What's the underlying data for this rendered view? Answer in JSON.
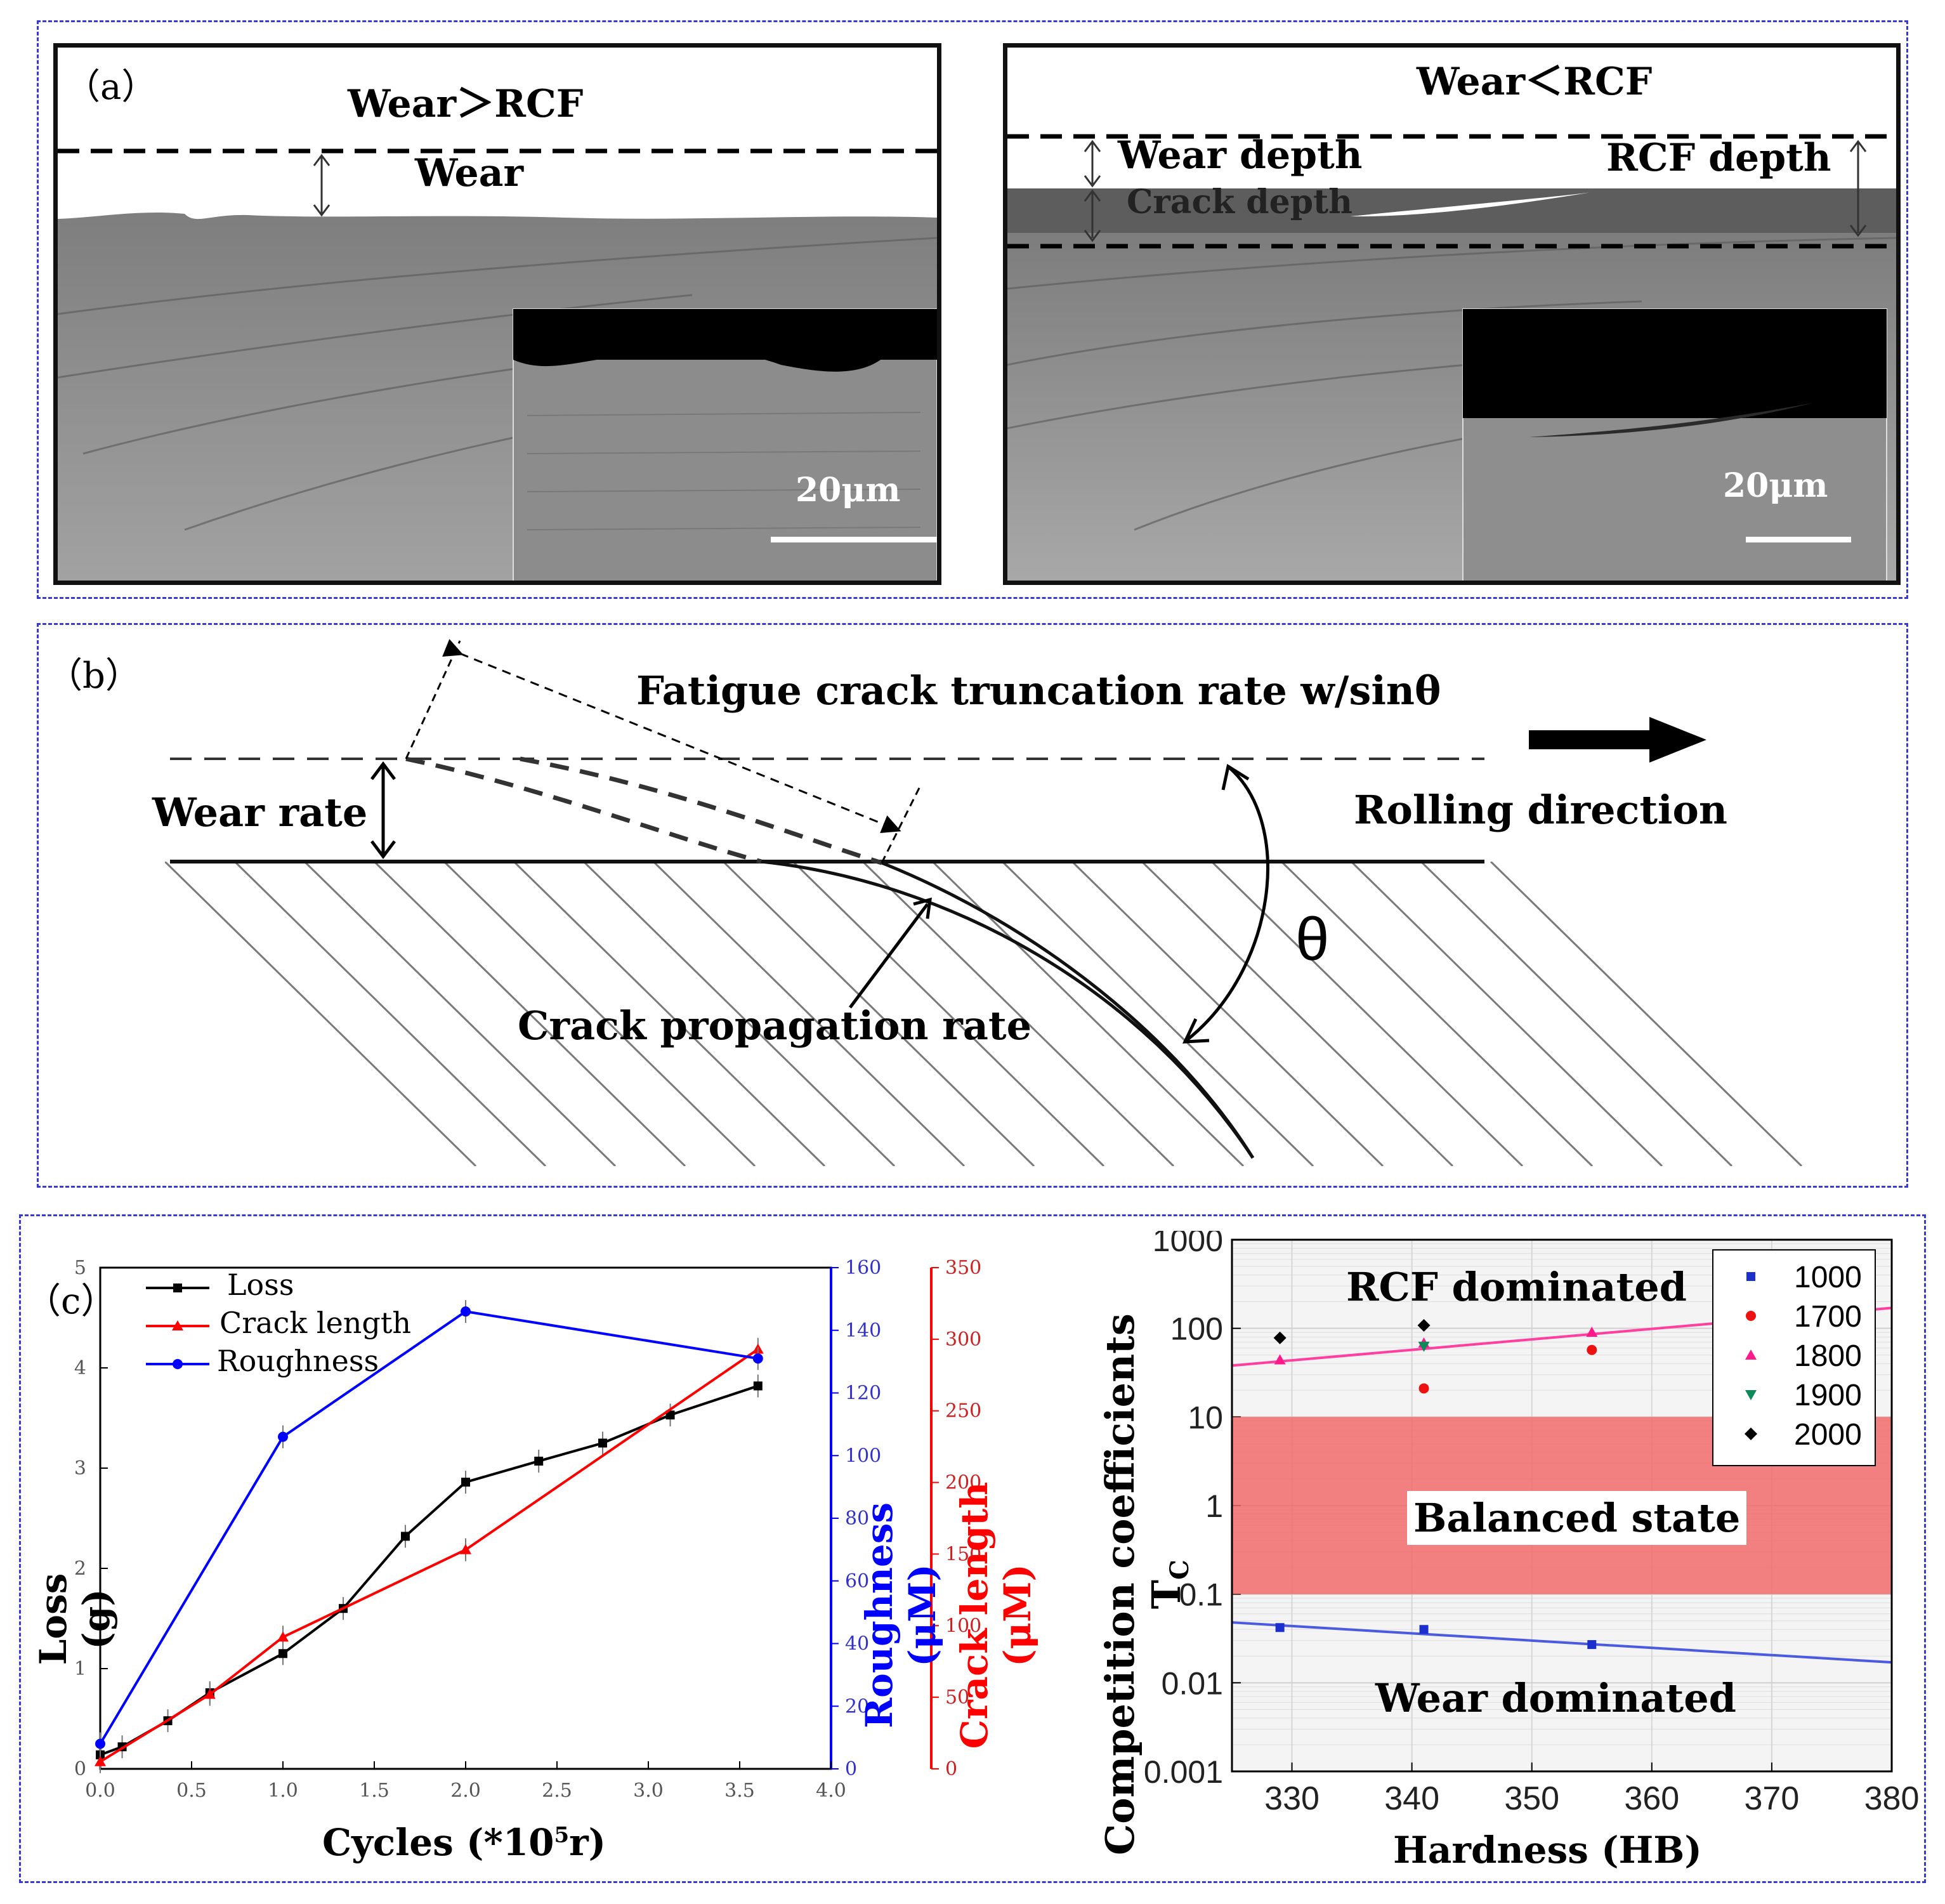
{
  "panel_a": {
    "label": "（a）",
    "left": {
      "title": "Wear＞RCF",
      "wear_label": "Wear",
      "scale_bar": "20μm"
    },
    "right": {
      "title": "Wear＜RCF",
      "wear_depth_label": "Wear depth",
      "rcf_depth_label": "RCF depth",
      "crack_depth_label": "Crack depth",
      "scale_bar": "20μm"
    }
  },
  "panel_b": {
    "label": "（b）",
    "truncation_label": "Fatigue crack truncation rate w/sinθ",
    "wear_rate_label": "Wear rate",
    "rolling_label": "Rolling direction",
    "theta_label": "θ",
    "crack_prop_label": "Crack propagation rate"
  },
  "panel_c": {
    "label": "（c）"
  },
  "chart_data": [
    {
      "type": "line",
      "title": "",
      "xlabel": "Cycles (*10⁵r)",
      "ylabel_left": "Loss (g)",
      "ylabel_right_1": "Roughness (μM)",
      "ylabel_right_2": "Crack length (μM)",
      "xlim": [
        0,
        4
      ],
      "x_ticks": [
        "0.0",
        "0.5",
        "1.0",
        "1.5",
        "2.0",
        "2.5",
        "3.0",
        "3.5",
        "4.0"
      ],
      "y_left_lim": [
        0,
        5
      ],
      "y_left_ticks": [
        "0",
        "1",
        "2",
        "3",
        "4",
        "5"
      ],
      "y_rough_lim": [
        0,
        160
      ],
      "y_rough_ticks": [
        "0",
        "20",
        "40",
        "60",
        "80",
        "100",
        "120",
        "140",
        "160"
      ],
      "y_crack_lim": [
        0,
        350
      ],
      "y_crack_ticks": [
        "0",
        "50",
        "100",
        "150",
        "200",
        "250",
        "300",
        "350"
      ],
      "legend_position": "top-left",
      "series": [
        {
          "name": "Loss",
          "axis": "left",
          "color": "#000000",
          "marker": "square",
          "x": [
            0,
            0.12,
            0.37,
            0.6,
            1.0,
            1.33,
            1.67,
            2.0,
            2.4,
            2.75,
            3.12,
            3.6
          ],
          "y": [
            0.14,
            0.22,
            0.48,
            0.76,
            1.15,
            1.6,
            2.32,
            2.86,
            3.07,
            3.25,
            3.53,
            3.82
          ]
        },
        {
          "name": "Crack length",
          "axis": "crack",
          "color": "#ff0000",
          "marker": "triangle",
          "x": [
            0,
            0.6,
            1.0,
            2.0,
            3.6
          ],
          "y": [
            5,
            52,
            92,
            153,
            293
          ]
        },
        {
          "name": "Roughness",
          "axis": "rough",
          "color": "#0000ff",
          "marker": "circle",
          "x": [
            0,
            1.0,
            2.0,
            3.6
          ],
          "y": [
            8,
            106,
            146,
            131
          ]
        }
      ]
    },
    {
      "type": "scatter",
      "title": "",
      "xlabel": "Hardness (HB)",
      "ylabel": "Competition coefficients T",
      "ylabel_sub": "C",
      "xlim": [
        325,
        380
      ],
      "x_ticks": [
        "330",
        "340",
        "350",
        "360",
        "370",
        "380"
      ],
      "y_scale": "log",
      "ylim": [
        0.001,
        1000
      ],
      "y_ticks": [
        "0.001",
        "0.01",
        "0.1",
        "1",
        "10",
        "100",
        "1000"
      ],
      "legend_position": "top-right",
      "region_labels": [
        "RCF dominated",
        "Balanced state",
        "Wear dominated"
      ],
      "balanced_band": [
        0.1,
        10
      ],
      "band_color": "#f26b6b",
      "series": [
        {
          "name": "1000",
          "color": "#1a2fcc",
          "marker": "square",
          "x": [
            329,
            341,
            355
          ],
          "y": [
            0.042,
            0.04,
            0.027
          ]
        },
        {
          "name": "1700",
          "color": "#ee1111",
          "marker": "circle",
          "x": [
            341,
            355
          ],
          "y": [
            21,
            57
          ]
        },
        {
          "name": "1800",
          "color": "#ff1a8c",
          "marker": "triangle-up",
          "x": [
            329,
            341,
            355
          ],
          "y": [
            44,
            68,
            90
          ]
        },
        {
          "name": "1900",
          "color": "#0b8a5a",
          "marker": "triangle-down",
          "x": [
            341
          ],
          "y": [
            63
          ]
        },
        {
          "name": "2000",
          "color": "#000000",
          "marker": "diamond",
          "x": [
            329,
            341
          ],
          "y": [
            78,
            108
          ]
        }
      ],
      "fit_lines": [
        {
          "color": "#ff3fa0",
          "x": [
            325,
            380
          ],
          "y": [
            38,
            170
          ]
        },
        {
          "color": "#4b5be0",
          "x": [
            325,
            380
          ],
          "y": [
            0.048,
            0.017
          ]
        }
      ]
    }
  ]
}
